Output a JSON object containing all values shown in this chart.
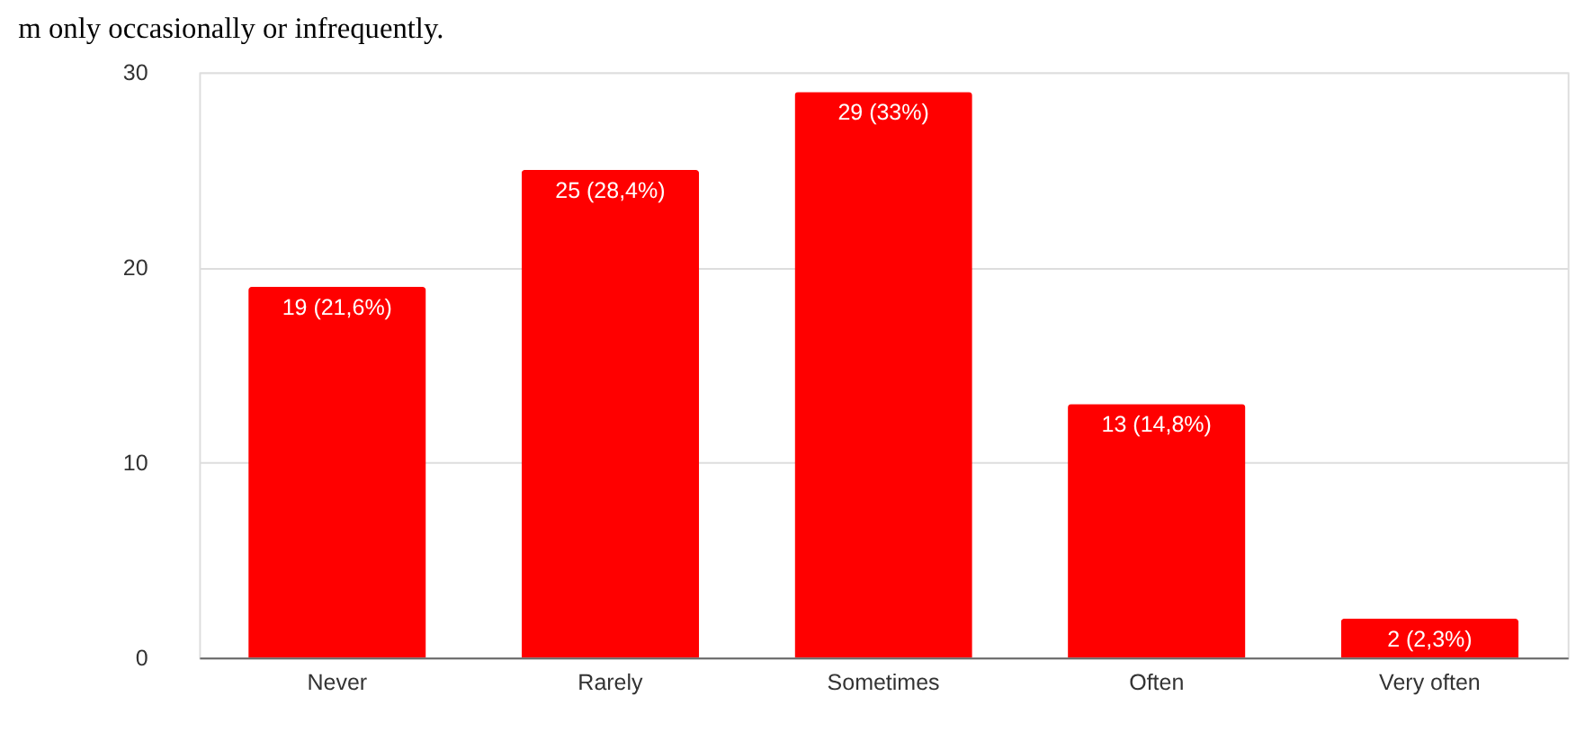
{
  "chart_data": {
    "type": "bar",
    "categories": [
      "Never",
      "Rarely",
      "Sometimes",
      "Often",
      "Very often"
    ],
    "values": [
      19,
      25,
      29,
      13,
      2
    ],
    "value_labels": [
      "19 (21,6%)",
      "25 (28,4%)",
      "29 (33%)",
      "13 (14,8%)",
      "2 (2,3%)"
    ],
    "color": "#ff0000",
    "ylim": [
      0,
      30
    ],
    "yticks": [
      0,
      10,
      20,
      30
    ],
    "grid": "y",
    "annotations": [
      "m only occasionally or infrequently."
    ]
  }
}
